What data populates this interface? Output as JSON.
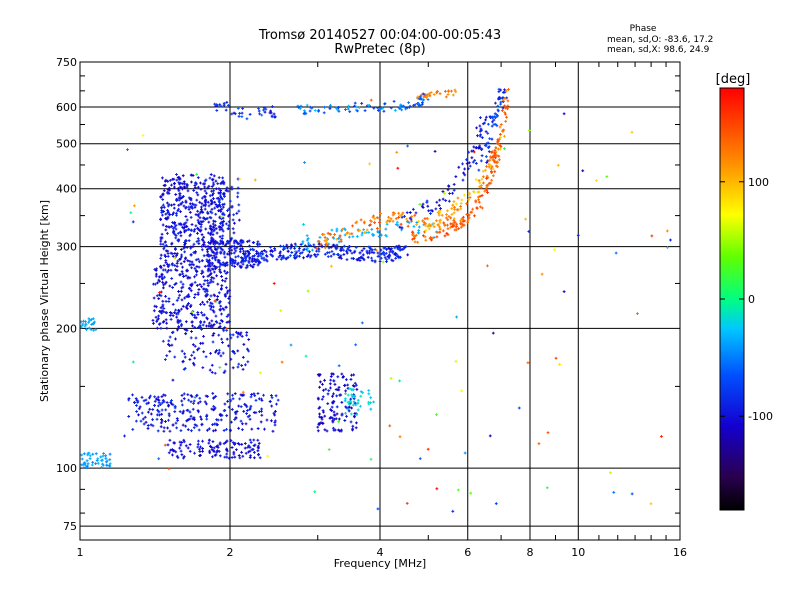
{
  "chart_data": {
    "type": "scatter",
    "title": "Tromsø 20140527 00:04:00-00:05:43",
    "subtitle": "RwPretec (8p)",
    "xlabel": "Frequency [MHz]",
    "ylabel": "Stationary phase Virtual Height [km]",
    "x_scale": "log",
    "y_scale": "log",
    "xlim": [
      1,
      16
    ],
    "ylim": [
      70,
      750
    ],
    "x_ticks": [
      1,
      2,
      4,
      6,
      8,
      10,
      16
    ],
    "x_tick_labels": [
      "1",
      "2",
      "4",
      "6",
      "8",
      "10",
      "16"
    ],
    "y_ticks": [
      75,
      100,
      200,
      300,
      400,
      500,
      600,
      750
    ],
    "y_tick_labels": [
      "75",
      "100",
      "200",
      "300",
      "400",
      "500",
      "600",
      "750"
    ],
    "grid": true,
    "stats": {
      "heading": "Phase",
      "line1": "mean, sd,O: -83.6, 17.2",
      "line2": "mean, sd,X:  98.6, 24.9"
    },
    "colorbar": {
      "unit": "[deg]",
      "range": [
        -180,
        180
      ],
      "ticks": [
        100,
        0,
        -100
      ],
      "tick_labels": [
        "100",
        "0",
        "-100"
      ]
    },
    "clusters": [
      {
        "shape": "poly",
        "x": [
          1.45,
          1.95,
          1.95,
          1.45
        ],
        "y": [
          270,
          270,
          430,
          430
        ],
        "phase": [
          -115,
          -85
        ],
        "count": 500
      },
      {
        "shape": "poly",
        "x": [
          1.4,
          2.0,
          2.0,
          1.4
        ],
        "y": [
          200,
          200,
          270,
          270
        ],
        "phase": [
          -115,
          -85
        ],
        "count": 300
      },
      {
        "shape": "poly",
        "x": [
          1.45,
          2.2,
          2.2,
          1.45
        ],
        "y": [
          160,
          160,
          200,
          200
        ],
        "phase": [
          -115,
          -80
        ],
        "count": 100
      },
      {
        "shape": "poly",
        "x": [
          1.8,
          2.3,
          2.3,
          1.8
        ],
        "y": [
          270,
          270,
          310,
          310
        ],
        "phase": [
          -110,
          -85
        ],
        "count": 150
      },
      {
        "shape": "poly",
        "x": [
          1.9,
          2.1,
          2.1,
          1.9
        ],
        "y": [
          300,
          300,
          420,
          420
        ],
        "phase": [
          -110,
          -80
        ],
        "count": 60
      },
      {
        "shape": "curve",
        "x": [
          2.1,
          2.5,
          3.0,
          3.5,
          4.0,
          4.5
        ],
        "y": [
          285,
          292,
          295,
          290,
          288,
          292
        ],
        "jitter": 0.018,
        "phase": [
          -110,
          -70
        ],
        "count": 260
      },
      {
        "shape": "curve",
        "x": [
          2.7,
          3.2,
          3.7,
          4.3,
          5.2
        ],
        "y": [
          300,
          315,
          325,
          328,
          325
        ],
        "jitter": 0.02,
        "phase": [
          -40,
          -25
        ],
        "count": 70
      },
      {
        "shape": "curve",
        "x": [
          3.0,
          3.6,
          4.2,
          5.0,
          5.8
        ],
        "y": [
          305,
          330,
          345,
          340,
          335
        ],
        "jitter": 0.018,
        "phase": [
          100,
          150
        ],
        "count": 100
      },
      {
        "shape": "curve",
        "x": [
          4.6,
          5.3,
          5.9,
          6.3,
          6.7,
          6.9
        ],
        "y": [
          315,
          320,
          340,
          370,
          430,
          480
        ],
        "jitter": 0.015,
        "phase": [
          120,
          160
        ],
        "count": 110
      },
      {
        "shape": "curve",
        "x": [
          4.8,
          5.5,
          6.1,
          6.6,
          7.1
        ],
        "y": [
          330,
          355,
          390,
          440,
          520
        ],
        "jitter": 0.015,
        "phase": [
          80,
          130
        ],
        "count": 70
      },
      {
        "shape": "curve",
        "x": [
          4.4,
          5.2,
          5.8,
          6.2,
          6.5
        ],
        "y": [
          340,
          370,
          420,
          480,
          560
        ],
        "jitter": 0.02,
        "phase": [
          -115,
          -80
        ],
        "count": 80
      },
      {
        "shape": "curve",
        "x": [
          6.4,
          6.6,
          6.8,
          7.0,
          7.1
        ],
        "y": [
          440,
          520,
          580,
          620,
          650
        ],
        "jitter": 0.02,
        "phase": [
          -100,
          -60
        ],
        "count": 60
      },
      {
        "shape": "curve",
        "x": [
          6.6,
          6.9,
          7.1,
          7.2
        ],
        "y": [
          450,
          500,
          560,
          640
        ],
        "jitter": 0.015,
        "phase": [
          120,
          150
        ],
        "count": 40
      },
      {
        "shape": "curve",
        "x": [
          2.7,
          3.3,
          4.0,
          4.7,
          5.0
        ],
        "y": [
          590,
          600,
          600,
          610,
          630
        ],
        "jitter": 0.012,
        "phase": [
          -85,
          -20
        ],
        "count": 90
      },
      {
        "shape": "curve",
        "x": [
          4.7,
          5.3,
          5.8
        ],
        "y": [
          630,
          640,
          640
        ],
        "jitter": 0.01,
        "phase": [
          110,
          140
        ],
        "count": 25
      },
      {
        "shape": "curve",
        "x": [
          1.85,
          2.0,
          2.2,
          2.5
        ],
        "y": [
          610,
          590,
          580,
          585
        ],
        "jitter": 0.015,
        "phase": [
          -110,
          -50
        ],
        "count": 40
      },
      {
        "shape": "poly",
        "x": [
          1.25,
          2.5,
          2.5,
          1.25
        ],
        "y": [
          120,
          120,
          145,
          145
        ],
        "phase": [
          -115,
          -80
        ],
        "count": 260
      },
      {
        "shape": "poly",
        "x": [
          1.5,
          2.3,
          2.3,
          1.5
        ],
        "y": [
          105,
          105,
          115,
          115
        ],
        "phase": [
          -115,
          -90
        ],
        "count": 120
      },
      {
        "shape": "poly",
        "x": [
          3.0,
          3.6,
          3.6,
          3.0
        ],
        "y": [
          120,
          120,
          160,
          160
        ],
        "phase": [
          -120,
          -90
        ],
        "count": 130
      },
      {
        "shape": "poly",
        "x": [
          3.4,
          3.9,
          3.9,
          3.4
        ],
        "y": [
          130,
          130,
          150,
          150
        ],
        "phase": [
          -30,
          -10
        ],
        "count": 40
      },
      {
        "shape": "poly",
        "x": [
          1.0,
          1.15,
          1.15,
          1.0
        ],
        "y": [
          100,
          100,
          108,
          108
        ],
        "phase": [
          -50,
          -30
        ],
        "count": 50
      },
      {
        "shape": "poly",
        "x": [
          1.0,
          1.08,
          1.08,
          1.0
        ],
        "y": [
          198,
          198,
          210,
          210
        ],
        "phase": [
          -40,
          -30
        ],
        "count": 25
      },
      {
        "shape": "poly",
        "x": [
          1.2,
          16,
          16,
          1.2
        ],
        "y": [
          80,
          80,
          640,
          640
        ],
        "phase": [
          -120,
          180
        ],
        "count": 110
      }
    ]
  }
}
